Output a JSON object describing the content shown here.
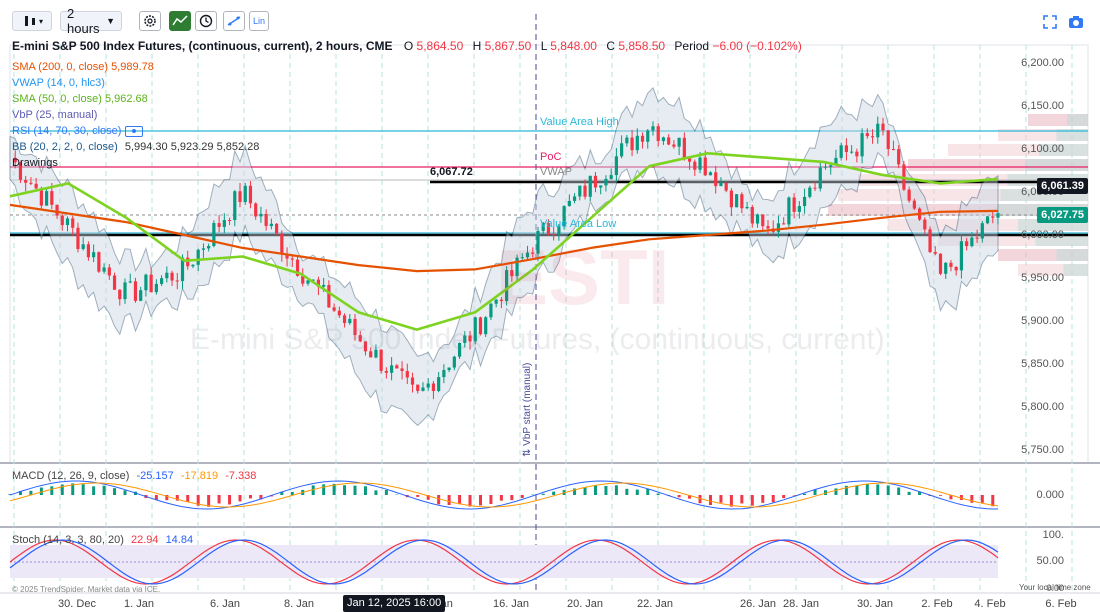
{
  "toolbar": {
    "interval": "2 hours",
    "lin_label": "Lin"
  },
  "header": {
    "symbol": "E-mini S&P 500 Index Futures, (continuous, current), 2 hours, CME",
    "open_label": "O",
    "open": "5,864.50",
    "high_label": "H",
    "high": "5,867.50",
    "low_label": "L",
    "low": "5,848.00",
    "close_label": "C",
    "close": "5,858.50",
    "period_label": "Period",
    "period_change": "−6.00 (−0.102%)"
  },
  "indicators": [
    {
      "name": "SMA (200, 0, close)",
      "value": "5,989.78",
      "color": "#e65100"
    },
    {
      "name": "VWAP (14, 0, hlc3)",
      "value": "",
      "color": "#2196f3"
    },
    {
      "name": "SMA (50, 0, close)",
      "value": "5,962.68",
      "color": "#7ed321"
    },
    {
      "name": "VbP (25, manual)",
      "value": "",
      "color": "#5d5bb5"
    },
    {
      "name": "RSI (14, 70, 30, close)",
      "value": "",
      "color": "#3179f5"
    },
    {
      "name": "BB (20, 2, 2, 0, close)",
      "value": "5,994.30 5,923.29 5,852.28",
      "color": "#1e5a8c"
    },
    {
      "name": "Drawings",
      "value": "",
      "color": "#131722"
    }
  ],
  "labels": {
    "value_area_high": "Value Area High",
    "poc": "PoC",
    "vwap": "VWAP",
    "value_area_low": "Value Area Low",
    "line_price": "6,067.72",
    "vbp_start": "⇅ VbP start (manual)",
    "watermark1": "ESTI",
    "watermark2": "E-mini S&P 500 Index Futures, (continuous, current)",
    "copyright": "© 2025 TrendSpider. Market data via ICE.",
    "local_time": "Your local time zone"
  },
  "price_axis": [
    "6,200.00",
    "6,150.00",
    "6,100.00",
    "6,050.00",
    "6,000.00",
    "5,950.00",
    "5,900.00",
    "5,850.00",
    "5,800.00",
    "5,750.00"
  ],
  "price_tags": {
    "resistance": "6,061.39",
    "last": "6,027.75"
  },
  "macd": {
    "name": "MACD (12, 26, 9, close)",
    "v1": "-25.157",
    "v2": "-17.819",
    "v3": "-7.338",
    "zero": "0.000"
  },
  "stoch": {
    "name": "Stoch (14, 3, 3, 80, 20)",
    "v1": "22.94",
    "v2": "14.84",
    "ticks": [
      "100.",
      "50.00",
      "0.00"
    ]
  },
  "x_axis": [
    "30. Dec",
    "1. Jan",
    "6. Jan",
    "8. Jan",
    "Jan",
    "16. Jan",
    "20. Jan",
    "22. Jan",
    "26. Jan",
    "28. Jan",
    "30. Jan",
    "2. Feb",
    "4. Feb",
    "6. Feb"
  ],
  "cursor_time": "Jan 12, 2025 16:00",
  "colors": {
    "up": "#089981",
    "down": "#f23645",
    "sma200": "#e65100",
    "sma50": "#7ed321",
    "bb": "#2a4d6e",
    "vah": "#2ab8d8",
    "poc": "#e91e63",
    "resistance": "#000000",
    "last": "#089981"
  },
  "chart_data": {
    "type": "line",
    "title": "E-mini S&P 500 Index Futures, (continuous, current), 2 hours, CME",
    "x_range": [
      "29 Dec 2024",
      "6 Feb 2025"
    ],
    "ylim": [
      5730,
      6220
    ],
    "series": [
      {
        "name": "SMA (200, 0, close)",
        "values": [
          6035,
          6025,
          6015,
          6000,
          5985,
          5975,
          5965,
          5958,
          5960,
          5972,
          5985,
          5995,
          6000,
          6005,
          6012,
          6020,
          6027,
          6028
        ]
      },
      {
        "name": "SMA (50, 0, close)",
        "values": [
          6045,
          6060,
          6020,
          5970,
          5975,
          5955,
          5910,
          5890,
          5910,
          5960,
          6020,
          6080,
          6095,
          6090,
          6085,
          6070,
          6060,
          6065
        ]
      },
      {
        "name": "Close",
        "values": [
          6090,
          6010,
          5930,
          5960,
          6050,
          5960,
          5880,
          5810,
          5890,
          5990,
          6060,
          6130,
          6080,
          6000,
          6080,
          6120,
          5950,
          6027
        ]
      }
    ]
  }
}
